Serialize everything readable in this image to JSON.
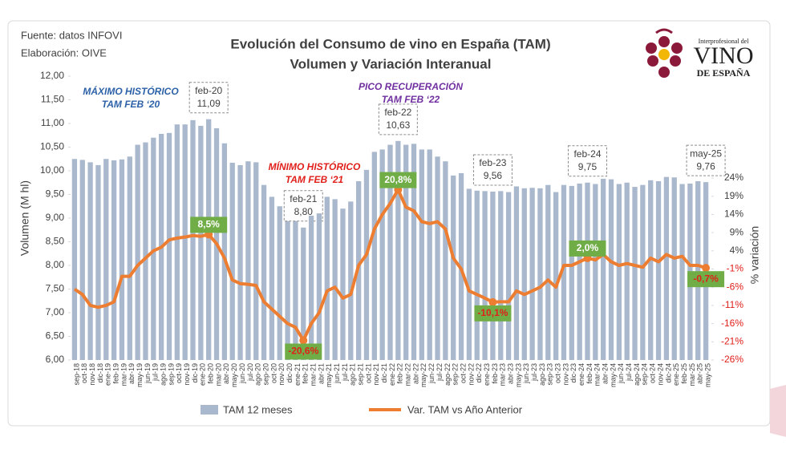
{
  "source": [
    "Fuente: datos INFOVI",
    "Elaboración: OIVE"
  ],
  "logo": {
    "top": "Interprofesional del",
    "main": "VINO",
    "bottom": "DE ESPAÑA"
  },
  "chart_data": {
    "type": "bar-line",
    "title": [
      "Evolución del Consumo de vino en España (TAM)",
      "Volumen y Variación Interanual"
    ],
    "y_label": "Volumen (M hl)",
    "y2_label": "% variación",
    "grid": false,
    "categories": [
      "sep-18",
      "oct-18",
      "nov-18",
      "dic-18",
      "ene-19",
      "feb-19",
      "mar-19",
      "abr-19",
      "may-19",
      "jun-19",
      "jul-19",
      "ago-19",
      "sep-19",
      "oct-19",
      "nov-19",
      "dic-19",
      "ene-20",
      "feb-20",
      "mar-20",
      "abr-20",
      "may-20",
      "jun-20",
      "jul-20",
      "ago-20",
      "sep-20",
      "oct-20",
      "nov-20",
      "dic-20",
      "ene-21",
      "feb-21",
      "mar-21",
      "abr-21",
      "may-21",
      "jun-21",
      "jul-21",
      "ago-21",
      "sep-21",
      "oct-21",
      "nov-21",
      "dic-21",
      "ene-22",
      "feb-22",
      "mar-22",
      "abr-22",
      "may-22",
      "jun-22",
      "jul-22",
      "ago-22",
      "sep-22",
      "oct-22",
      "nov-22",
      "dic-22",
      "ene-23",
      "feb-23",
      "mar-23",
      "abr-23",
      "may-23",
      "jun-23",
      "jul-23",
      "ago-23",
      "sep-23",
      "oct-23",
      "nov-23",
      "dic-23",
      "ene-24",
      "feb-24",
      "mar-24",
      "abr-24",
      "may-24",
      "jun-24",
      "jul-24",
      "ago-24",
      "sep-24",
      "oct-24",
      "nov-24",
      "dic-24",
      "ene-25",
      "feb-25",
      "mar-25",
      "abr-25",
      "may-25"
    ],
    "series": [
      {
        "name": "TAM 12 meses",
        "type": "bar",
        "color": "#a9b8cc",
        "values": [
          10.25,
          10.23,
          10.18,
          10.12,
          10.25,
          10.22,
          10.24,
          10.3,
          10.55,
          10.6,
          10.7,
          10.78,
          10.8,
          10.98,
          10.98,
          11.07,
          10.95,
          11.09,
          10.9,
          10.58,
          10.17,
          10.12,
          10.2,
          10.18,
          9.7,
          9.45,
          9.25,
          9.15,
          9.0,
          8.8,
          9.05,
          9.1,
          9.45,
          9.4,
          9.2,
          9.35,
          9.78,
          10.02,
          10.4,
          10.45,
          10.55,
          10.63,
          10.55,
          10.57,
          10.45,
          10.45,
          10.3,
          10.2,
          9.9,
          9.95,
          9.62,
          9.58,
          9.57,
          9.56,
          9.57,
          9.55,
          9.67,
          9.63,
          9.64,
          9.63,
          9.7,
          9.55,
          9.7,
          9.68,
          9.73,
          9.75,
          9.72,
          9.83,
          9.82,
          9.72,
          9.75,
          9.66,
          9.7,
          9.8,
          9.78,
          9.87,
          9.86,
          9.72,
          9.73,
          9.78,
          9.76
        ],
        "value_labels": [
          null,
          null,
          null,
          null,
          null,
          null,
          null,
          null,
          null,
          null,
          null,
          null,
          null,
          null,
          null,
          null,
          null,
          "11,09",
          null,
          null,
          null,
          null,
          null,
          null,
          null,
          null,
          null,
          null,
          null,
          "8,80",
          null,
          null,
          null,
          null,
          null,
          null,
          null,
          null,
          null,
          null,
          null,
          "10,63",
          null,
          null,
          null,
          null,
          null,
          null,
          null,
          null,
          null,
          null,
          null,
          "9,56",
          null,
          null,
          null,
          null,
          null,
          null,
          null,
          null,
          null,
          null,
          null,
          "9,75",
          null,
          null,
          null,
          null,
          null,
          null,
          null,
          null,
          null,
          null,
          null,
          null,
          null,
          null,
          "9,76"
        ]
      },
      {
        "name": "Var. TAM vs Año Anterior",
        "type": "line",
        "axis": "y2",
        "color": "#ed7d31",
        "label_color": "#70ad47",
        "values": [
          -6.5,
          -8,
          -11,
          -11.5,
          -11,
          -10,
          -3,
          -3,
          0,
          2,
          4,
          5,
          7,
          7.5,
          7.8,
          8.2,
          8.0,
          8.5,
          6,
          2,
          -4,
          -5,
          -5.2,
          -5.5,
          -10,
          -12,
          -14,
          -16,
          -17,
          -20.6,
          -16,
          -13,
          -7,
          -6,
          -9,
          -8,
          0,
          3,
          10,
          14,
          17,
          20.8,
          16,
          15,
          12,
          11.5,
          12,
          10,
          2,
          -1,
          -7,
          -8,
          -9,
          -10.1,
          -10,
          -10,
          -7,
          -8,
          -7,
          -6,
          -4,
          -6,
          0,
          0,
          1,
          2.0,
          1.5,
          3,
          1,
          0,
          0.5,
          0,
          -0.5,
          2,
          1,
          3,
          2,
          2.5,
          0,
          0,
          -0.7
        ],
        "value_labels": [
          null,
          null,
          null,
          null,
          null,
          null,
          null,
          null,
          null,
          null,
          null,
          null,
          null,
          null,
          null,
          null,
          null,
          "8,5%",
          null,
          null,
          null,
          null,
          null,
          null,
          null,
          null,
          null,
          null,
          null,
          "-20,6%",
          null,
          null,
          null,
          null,
          null,
          null,
          null,
          null,
          null,
          null,
          null,
          "20,8%",
          null,
          null,
          null,
          null,
          null,
          null,
          null,
          null,
          null,
          null,
          null,
          "-10,1%",
          null,
          null,
          null,
          null,
          null,
          null,
          null,
          null,
          null,
          null,
          null,
          "2,0%",
          null,
          null,
          null,
          null,
          null,
          null,
          null,
          null,
          null,
          null,
          null,
          null,
          null,
          null,
          "-0,7%"
        ]
      }
    ],
    "ylim": [
      6,
      12
    ],
    "yticks": [
      {
        "value": 6,
        "label": "6,00"
      },
      {
        "value": 6.5,
        "label": "6,50"
      },
      {
        "value": 7,
        "label": "7,00"
      },
      {
        "value": 7.5,
        "label": "7,50"
      },
      {
        "value": 8,
        "label": "8,00"
      },
      {
        "value": 8.5,
        "label": "8,50"
      },
      {
        "value": 9,
        "label": "9,00"
      },
      {
        "value": 9.5,
        "label": "9,50"
      },
      {
        "value": 10,
        "label": "10,00"
      },
      {
        "value": 10.5,
        "label": "10,50"
      },
      {
        "value": 11,
        "label": "11,00"
      },
      {
        "value": 11.5,
        "label": "11,50"
      },
      {
        "value": 12,
        "label": "12,00"
      }
    ],
    "y2lim": [
      -26,
      52
    ],
    "y2ticks": [
      {
        "value": 24,
        "label": "24%"
      },
      {
        "value": 19,
        "label": "19%"
      },
      {
        "value": 14,
        "label": "14%"
      },
      {
        "value": 9,
        "label": "9%"
      },
      {
        "value": 4,
        "label": "4%"
      },
      {
        "value": -1,
        "label": "-1%"
      },
      {
        "value": -6,
        "label": "-6%"
      },
      {
        "value": -11,
        "label": "-11%"
      },
      {
        "value": -16,
        "label": "-16%"
      },
      {
        "value": -21,
        "label": "-21%"
      },
      {
        "value": -26,
        "label": "-26%"
      }
    ],
    "annotations": [
      {
        "text": [
          "MÁXIMO HISTÓRICO",
          "TAM FEB ‘20"
        ],
        "color": "#2e62a8"
      },
      {
        "text": [
          "MÍNIMO HISTÓRICO",
          "TAM FEB ‘21"
        ],
        "color": "#e0201b"
      },
      {
        "text": [
          "PICO RECUPERACIÓN",
          "TAM FEB ‘22"
        ],
        "color": "#7030a0"
      }
    ]
  }
}
